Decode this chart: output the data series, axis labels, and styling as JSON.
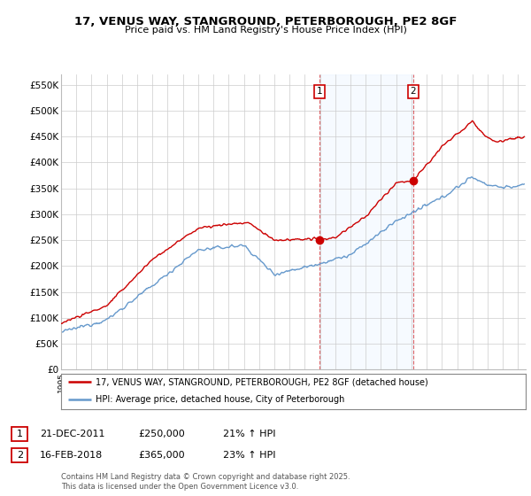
{
  "title_line1": "17, VENUS WAY, STANGROUND, PETERBOROUGH, PE2 8GF",
  "title_line2": "Price paid vs. HM Land Registry's House Price Index (HPI)",
  "background_color": "#ffffff",
  "plot_bg_color": "#ffffff",
  "grid_color": "#cccccc",
  "red_color": "#cc0000",
  "blue_color": "#6699cc",
  "span_color": "#ddeeff",
  "sale1_date": "21-DEC-2011",
  "sale1_price": "£250,000",
  "sale1_hpi": "21% ↑ HPI",
  "sale2_date": "16-FEB-2018",
  "sale2_price": "£365,000",
  "sale2_hpi": "23% ↑ HPI",
  "legend1": "17, VENUS WAY, STANGROUND, PETERBOROUGH, PE2 8GF (detached house)",
  "legend2": "HPI: Average price, detached house, City of Peterborough",
  "footer": "Contains HM Land Registry data © Crown copyright and database right 2025.\nThis data is licensed under the Open Government Licence v3.0.",
  "ylim_min": 0,
  "ylim_max": 570000,
  "yticks": [
    0,
    50000,
    100000,
    150000,
    200000,
    250000,
    300000,
    350000,
    400000,
    450000,
    500000,
    550000
  ],
  "ytick_labels": [
    "£0",
    "£50K",
    "£100K",
    "£150K",
    "£200K",
    "£250K",
    "£300K",
    "£350K",
    "£400K",
    "£450K",
    "£500K",
    "£550K"
  ],
  "sale1_x": 2011.97,
  "sale1_y": 250000,
  "sale2_x": 2018.12,
  "sale2_y": 365000,
  "vline1_x": 2011.97,
  "vline2_x": 2018.12,
  "xlim_min": 1995,
  "xlim_max": 2025.5
}
